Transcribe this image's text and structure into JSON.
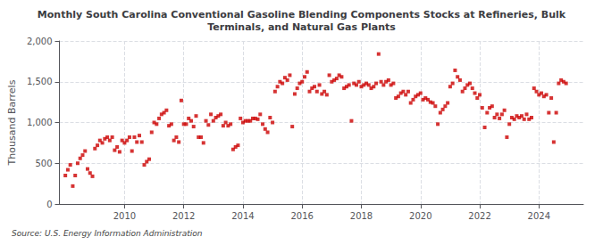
{
  "chart_data": {
    "type": "scatter",
    "title": "Monthly South Carolina Conventional Gasoline Blending Components Stocks at Refineries, Bulk\nTerminals, and Natural Gas Plants",
    "ylabel": "Thousand Barrels",
    "annotation": "Source: U.S. Energy Information Administration",
    "color": "#cc0000",
    "marker": "square",
    "grid": true,
    "xlim": [
      2007.8,
      2025.5
    ],
    "xticks": [
      2010,
      2012,
      2014,
      2016,
      2018,
      2020,
      2022,
      2024
    ],
    "ylim": [
      0,
      2000
    ],
    "yticks": [
      0,
      500,
      {
        "value": 1000,
        "label": "1,000"
      },
      {
        "value": 1500,
        "label": "1,500"
      },
      {
        "value": 2000,
        "label": "2,000"
      }
    ],
    "x": [
      2008,
      2008.083333333333,
      2008.166666666667,
      2008.25,
      2008.333333333333,
      2008.416666666667,
      2008.5,
      2008.583333333333,
      2008.666666666667,
      2008.75,
      2008.833333333333,
      2008.916666666667,
      2009,
      2009.083333333333,
      2009.166666666667,
      2009.25,
      2009.333333333333,
      2009.416666666667,
      2009.5,
      2009.583333333333,
      2009.666666666667,
      2009.75,
      2009.833333333333,
      2009.916666666667,
      2010,
      2010.083333333333,
      2010.166666666667,
      2010.25,
      2010.333333333333,
      2010.416666666667,
      2010.5,
      2010.583333333333,
      2010.666666666667,
      2010.75,
      2010.833333333333,
      2010.916666666667,
      2011,
      2011.083333333333,
      2011.166666666667,
      2011.25,
      2011.333333333333,
      2011.416666666667,
      2011.5,
      2011.583333333333,
      2011.666666666667,
      2011.75,
      2011.833333333333,
      2011.916666666667,
      2012,
      2012.083333333333,
      2012.166666666667,
      2012.25,
      2012.333333333333,
      2012.416666666667,
      2012.5,
      2012.583333333333,
      2012.666666666667,
      2012.75,
      2012.833333333333,
      2012.916666666667,
      2013,
      2013.083333333333,
      2013.166666666667,
      2013.25,
      2013.333333333333,
      2013.416666666667,
      2013.5,
      2013.583333333333,
      2013.666666666667,
      2013.75,
      2013.833333333333,
      2013.916666666667,
      2014,
      2014.083333333333,
      2014.166666666667,
      2014.25,
      2014.333333333333,
      2014.416666666667,
      2014.5,
      2014.583333333333,
      2014.666666666667,
      2014.75,
      2014.833333333333,
      2014.916666666667,
      2015,
      2015.083333333333,
      2015.166666666667,
      2015.25,
      2015.333333333333,
      2015.416666666667,
      2015.5,
      2015.583333333333,
      2015.666666666667,
      2015.75,
      2015.833333333333,
      2015.916666666667,
      2016,
      2016.083333333333,
      2016.166666666667,
      2016.25,
      2016.333333333333,
      2016.416666666667,
      2016.5,
      2016.583333333333,
      2016.666666666667,
      2016.75,
      2016.833333333333,
      2016.916666666667,
      2017,
      2017.083333333333,
      2017.166666666667,
      2017.25,
      2017.333333333333,
      2017.416666666667,
      2017.5,
      2017.583333333333,
      2017.666666666667,
      2017.75,
      2017.833333333333,
      2017.916666666667,
      2018,
      2018.083333333333,
      2018.166666666667,
      2018.25,
      2018.333333333333,
      2018.416666666667,
      2018.5,
      2018.583333333333,
      2018.666666666667,
      2018.75,
      2018.833333333333,
      2018.916666666667,
      2019,
      2019.083333333333,
      2019.166666666667,
      2019.25,
      2019.333333333333,
      2019.416666666667,
      2019.5,
      2019.583333333333,
      2019.666666666667,
      2019.75,
      2019.833333333333,
      2019.916666666667,
      2020,
      2020.083333333333,
      2020.166666666667,
      2020.25,
      2020.333333333333,
      2020.416666666667,
      2020.5,
      2020.583333333333,
      2020.666666666667,
      2020.75,
      2020.833333333333,
      2020.916666666667,
      2021,
      2021.083333333333,
      2021.166666666667,
      2021.25,
      2021.333333333333,
      2021.416666666667,
      2021.5,
      2021.583333333333,
      2021.666666666667,
      2021.75,
      2021.833333333333,
      2021.916666666667,
      2022,
      2022.083333333333,
      2022.166666666667,
      2022.25,
      2022.333333333333,
      2022.416666666667,
      2022.5,
      2022.583333333333,
      2022.666666666667,
      2022.75,
      2022.833333333333,
      2022.916666666667,
      2023,
      2023.083333333333,
      2023.166666666667,
      2023.25,
      2023.333333333333,
      2023.416666666667,
      2023.5,
      2023.583333333333,
      2023.666666666667,
      2023.75,
      2023.833333333333,
      2023.916666666667,
      2024,
      2024.083333333333,
      2024.166666666667,
      2024.25,
      2024.333333333333,
      2024.416666666667,
      2024.5,
      2024.583333333333,
      2024.666666666667,
      2024.75,
      2024.833333333333,
      2024.916666666667
    ],
    "values": [
      350,
      420,
      480,
      220,
      350,
      500,
      560,
      600,
      650,
      430,
      380,
      340,
      680,
      720,
      780,
      750,
      800,
      820,
      780,
      820,
      660,
      700,
      640,
      780,
      750,
      780,
      820,
      650,
      820,
      760,
      840,
      760,
      480,
      520,
      550,
      880,
      1000,
      980,
      1050,
      1100,
      1120,
      1150,
      960,
      980,
      780,
      820,
      760,
      1270,
      980,
      980,
      1050,
      1020,
      950,
      1080,
      820,
      820,
      750,
      1020,
      970,
      1100,
      1020,
      1060,
      1080,
      1100,
      960,
      1000,
      960,
      980,
      670,
      700,
      720,
      1050,
      1000,
      1020,
      1020,
      1020,
      1050,
      1050,
      1040,
      1100,
      980,
      920,
      880,
      1060,
      1000,
      1380,
      1440,
      1500,
      1480,
      1550,
      1520,
      1580,
      950,
      1350,
      1420,
      1480,
      1500,
      1560,
      1620,
      1380,
      1420,
      1440,
      1380,
      1460,
      1350,
      1380,
      1340,
      1580,
      1500,
      1520,
      1540,
      1580,
      1560,
      1420,
      1440,
      1460,
      1020,
      1480,
      1460,
      1500,
      1440,
      1460,
      1480,
      1460,
      1420,
      1440,
      1480,
      1840,
      1500,
      1460,
      1500,
      1520,
      1460,
      1480,
      1300,
      1320,
      1360,
      1380,
      1340,
      1380,
      1240,
      1280,
      1320,
      1340,
      1360,
      1280,
      1300,
      1280,
      1250,
      1240,
      1200,
      980,
      1120,
      1160,
      1200,
      1240,
      1440,
      1480,
      1640,
      1560,
      1520,
      1380,
      1420,
      1460,
      1480,
      1420,
      1360,
      1300,
      1340,
      1180,
      940,
      1120,
      1180,
      1200,
      1060,
      1100,
      1050,
      1100,
      1150,
      820,
      980,
      1060,
      1040,
      1080,
      1060,
      1080,
      1040,
      1100,
      1040,
      1060,
      1420,
      1380,
      1340,
      1360,
      1320,
      1340,
      1120,
      1300,
      760,
      1120,
      1480,
      1520,
      1500,
      1480
    ]
  }
}
